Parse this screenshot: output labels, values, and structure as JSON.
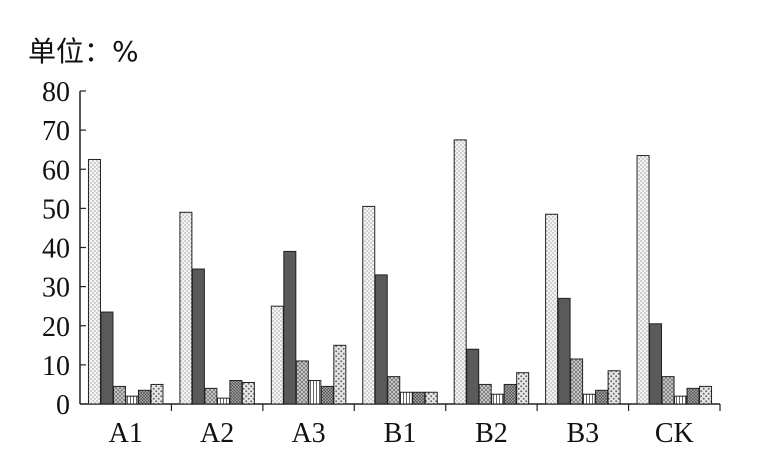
{
  "chart_data": {
    "type": "bar",
    "unit_label": "单位：%",
    "categories": [
      "A1",
      "A2",
      "A3",
      "B1",
      "B2",
      "B3",
      "CK"
    ],
    "ylim": [
      0,
      80
    ],
    "yticks": [
      "0",
      "10",
      "20",
      "30",
      "40",
      "50",
      "60",
      "70",
      "80"
    ],
    "grid": false,
    "legend": "none",
    "series": [
      {
        "values": [
          62.5,
          49,
          25,
          50.5,
          67.5,
          48.5,
          63.5
        ],
        "pattern": "dots-light"
      },
      {
        "values": [
          23.5,
          34.5,
          39,
          33,
          14,
          27,
          20.5
        ],
        "pattern": "dark-solid"
      },
      {
        "values": [
          4.5,
          4,
          11,
          7,
          5,
          11.5,
          7
        ],
        "pattern": "crosshatch"
      },
      {
        "values": [
          2,
          1.5,
          6,
          3,
          2.5,
          2.5,
          2
        ],
        "pattern": "vertical-lines"
      },
      {
        "values": [
          3.5,
          6,
          4.5,
          3,
          5,
          3.5,
          4
        ],
        "pattern": "dense-crosshatch"
      },
      {
        "values": [
          5,
          5.5,
          15,
          3,
          8,
          8.5,
          4.5
        ],
        "pattern": "dots-heavy"
      }
    ]
  }
}
